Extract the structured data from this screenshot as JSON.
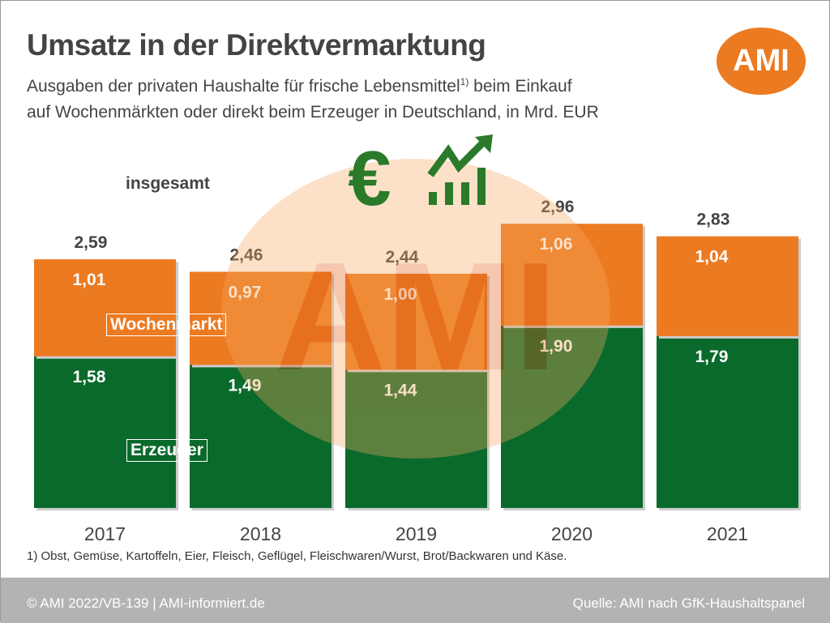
{
  "title": "Umsatz in der Direktvermarktung",
  "subtitle_1": "Ausgaben der privaten Haushalte für frische Lebensmittel",
  "subtitle_sup": "1)",
  "subtitle_1b": " beim Einkauf",
  "subtitle_2": "auf Wochenmärkten oder direkt beim Erzeuger in Deutschland, in Mrd. EUR",
  "logo": "AMI",
  "watermark": "AMI",
  "icons": [
    "euro-icon",
    "rising-chart-icon"
  ],
  "footnote": "1) Obst, Gemüse, Kartoffeln, Eier, Fleisch, Geflügel, Fleischwaren/Wurst, Brot/Backwaren und Käse.",
  "footer": {
    "left": "© AMI 2022/VB-139 | AMI-informiert.de",
    "right": "Quelle: AMI nach GfK-Haushaltspanel"
  },
  "chart_data": {
    "type": "bar",
    "stacked": true,
    "categories": [
      "2017",
      "2018",
      "2019",
      "2020",
      "2021"
    ],
    "total_label": "insgesamt",
    "totals": [
      "2,59",
      "2,46",
      "2,44",
      "2,96",
      "2,83"
    ],
    "series": [
      {
        "name": "Erzeuger",
        "values": [
          1.58,
          1.49,
          1.44,
          1.9,
          1.79
        ],
        "color": "#0a6a2c"
      },
      {
        "name": "Wochenmarkt",
        "values": [
          1.01,
          0.97,
          1.0,
          1.06,
          1.04
        ],
        "color": "#ec7a21"
      }
    ]
  }
}
